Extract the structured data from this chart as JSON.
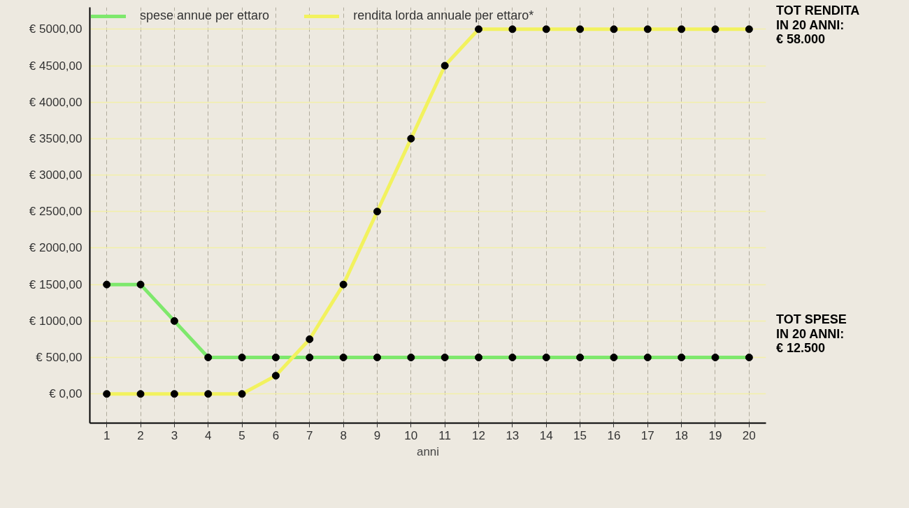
{
  "chart_data": {
    "type": "line",
    "xlabel": "anni",
    "x": [
      1,
      2,
      3,
      4,
      5,
      6,
      7,
      8,
      9,
      10,
      11,
      12,
      13,
      14,
      15,
      16,
      17,
      18,
      19,
      20
    ],
    "series": [
      {
        "name": "spese annue per ettaro",
        "color": "#7ee86c",
        "values": [
          1500,
          1500,
          1000,
          500,
          500,
          500,
          500,
          500,
          500,
          500,
          500,
          500,
          500,
          500,
          500,
          500,
          500,
          500,
          500,
          500
        ]
      },
      {
        "name": "rendita lorda annuale per ettaro*",
        "color": "#f2f25e",
        "values": [
          0,
          0,
          0,
          0,
          0,
          250,
          750,
          1500,
          2500,
          3500,
          4500,
          5000,
          5000,
          5000,
          5000,
          5000,
          5000,
          5000,
          5000,
          5000
        ]
      }
    ],
    "xlim": [
      0.5,
      20.5
    ],
    "ylim": [
      -400,
      5300
    ],
    "xticks": [
      1,
      2,
      3,
      4,
      5,
      6,
      7,
      8,
      9,
      10,
      11,
      12,
      13,
      14,
      15,
      16,
      17,
      18,
      19,
      20
    ],
    "yticks": [
      {
        "value": 0,
        "label": "€ 0,00"
      },
      {
        "value": 500,
        "label": "€ 500,00"
      },
      {
        "value": 1000,
        "label": "€ 1000,00"
      },
      {
        "value": 1500,
        "label": "€ 1500,00"
      },
      {
        "value": 2000,
        "label": "€ 2000,00"
      },
      {
        "value": 2500,
        "label": "€ 2500,00"
      },
      {
        "value": 3000,
        "label": "€ 3000,00"
      },
      {
        "value": 3500,
        "label": "€ 3500,00"
      },
      {
        "value": 4000,
        "label": "€ 4000,00"
      },
      {
        "value": 4500,
        "label": "€ 4500,00"
      },
      {
        "value": 5000,
        "label": "€ 5000,00"
      }
    ],
    "grid": true,
    "legend": "top",
    "marker": "circle",
    "line_style": "solid",
    "annotations": [
      "TOT RENDITA\nIN 20 ANNI:\n€ 58.000",
      "TOT SPESE\nIN 20 ANNI:\n€ 12.500"
    ]
  }
}
